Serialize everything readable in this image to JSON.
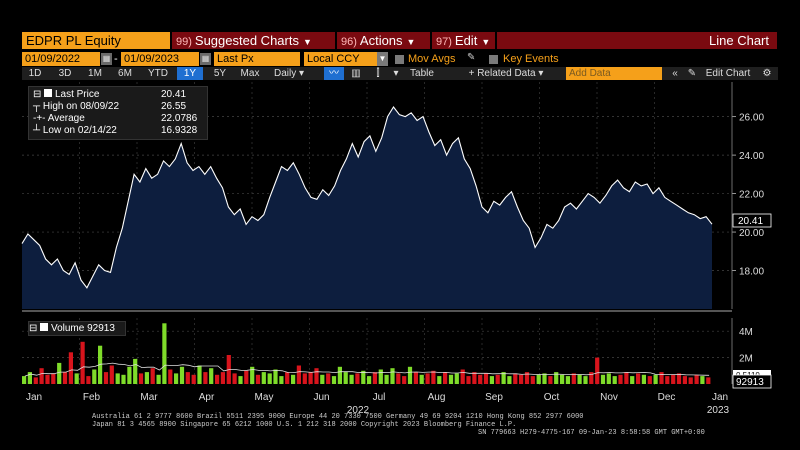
{
  "toolbar": {
    "ticker": "EDPR PL Equity",
    "suggested": {
      "num": "99)",
      "label": "Suggested Charts"
    },
    "actions": {
      "num": "96)",
      "label": "Actions"
    },
    "edit": {
      "num": "97)",
      "label": "Edit"
    },
    "chart_type": "Line Chart"
  },
  "controls": {
    "start_date": "01/09/2022",
    "end_date": "01/09/2023",
    "field": "Last Px",
    "currency": "Local CCY",
    "mov_avgs": "Mov Avgs",
    "key_events": "Key Events",
    "periods": [
      "1D",
      "3D",
      "1M",
      "6M",
      "YTD",
      "1Y",
      "5Y",
      "Max"
    ],
    "selected_period": "1Y",
    "frequency": "Daily",
    "table": "Table",
    "related_data": "+ Related Data",
    "add_data_placeholder": "Add Data",
    "edit_chart": "Edit Chart"
  },
  "legend": {
    "last_price_label": "Last Price",
    "last_price": "20.41",
    "high_label": "High on 08/09/22",
    "high": "26.55",
    "average_label": "Average",
    "average": "22.0786",
    "low_label": "Low on 02/14/22",
    "low": "16.9328",
    "volume_label": "Volume",
    "volume": "92913"
  },
  "chart_data": {
    "type": "area",
    "title": "EDPR PL Equity - Last Price",
    "ylim": [
      16,
      27.8
    ],
    "yticks": [
      "18.00",
      "20.00",
      "22.00",
      "24.00",
      "26.00"
    ],
    "last_value_label": "20.41",
    "x_month_labels": [
      "Jan",
      "Feb",
      "Mar",
      "Apr",
      "May",
      "Jun",
      "Jul",
      "Aug",
      "Sep",
      "Oct",
      "Nov",
      "Dec",
      "Jan"
    ],
    "year_labels": [
      "2022",
      "2023"
    ],
    "price": [
      19.4,
      19.9,
      19.6,
      19.3,
      18.6,
      18.3,
      18.6,
      18.0,
      17.8,
      18.4,
      17.5,
      17.1,
      17.7,
      18.3,
      18.0,
      17.9,
      19.2,
      20.2,
      21.6,
      23.0,
      22.6,
      23.3,
      22.8,
      23.0,
      23.7,
      23.4,
      23.8,
      24.6,
      23.6,
      23.2,
      23.4,
      23.0,
      23.4,
      22.8,
      22.3,
      21.3,
      20.9,
      21.2,
      20.4,
      20.8,
      20.6,
      20.9,
      21.8,
      22.6,
      23.4,
      23.2,
      23.6,
      23.0,
      22.3,
      21.8,
      21.7,
      22.2,
      21.9,
      22.4,
      23.2,
      23.8,
      24.6,
      23.9,
      24.7,
      25.0,
      24.2,
      24.9,
      26.0,
      26.5,
      26.1,
      26.0,
      26.2,
      25.8,
      26.0,
      25.2,
      24.5,
      24.8,
      24.0,
      24.6,
      24.9,
      23.8,
      23.3,
      22.4,
      21.3,
      21.0,
      21.6,
      21.4,
      21.8,
      22.1,
      21.3,
      20.6,
      20.2,
      19.2,
      19.7,
      20.4,
      20.2,
      20.6,
      21.3,
      21.5,
      21.2,
      21.6,
      22.0,
      21.8,
      21.5,
      21.9,
      22.4,
      22.7,
      22.3,
      22.1,
      22.6,
      22.4,
      22.5,
      22.0,
      22.3,
      21.8,
      21.6,
      21.4,
      21.2,
      21.0,
      20.9,
      20.7,
      20.8,
      20.41
    ],
    "volume": [
      0.6,
      0.9,
      0.5,
      1.2,
      0.7,
      0.8,
      1.6,
      0.9,
      2.4,
      0.8,
      3.2,
      0.6,
      1.1,
      2.9,
      0.9,
      1.4,
      0.8,
      0.7,
      1.3,
      1.9,
      0.8,
      0.9,
      1.2,
      0.7,
      4.6,
      1.1,
      0.8,
      1.3,
      0.9,
      0.7,
      1.4,
      0.9,
      1.2,
      0.7,
      0.9,
      2.2,
      0.8,
      0.6,
      1.0,
      1.3,
      0.7,
      0.9,
      0.8,
      1.1,
      0.6,
      0.9,
      0.7,
      1.4,
      0.8,
      0.9,
      1.2,
      0.7,
      0.8,
      0.6,
      1.3,
      0.9,
      0.7,
      0.8,
      1.0,
      0.6,
      0.9,
      1.1,
      0.7,
      1.2,
      0.8,
      0.6,
      1.3,
      0.9,
      0.7,
      0.8,
      1.0,
      0.6,
      0.9,
      0.7,
      0.8,
      1.1,
      0.6,
      0.9,
      0.7,
      0.8,
      0.6,
      0.7,
      0.9,
      0.6,
      0.8,
      0.7,
      0.9,
      0.6,
      0.7,
      0.8,
      0.6,
      0.9,
      0.7,
      0.6,
      0.8,
      0.7,
      0.6,
      0.9,
      2.0,
      0.7,
      0.8,
      0.6,
      0.7,
      0.9,
      0.6,
      0.8,
      0.7,
      0.6,
      0.7,
      0.9,
      0.6,
      0.7,
      0.8,
      0.6,
      0.5,
      0.7,
      0.6,
      0.5
    ],
    "volume_yticks": [
      "2M",
      "4M"
    ],
    "volume_ymax": 5,
    "volume_last_label": "92913",
    "volume_ma_label": "0.5110"
  },
  "footer": {
    "line1": "Australia 61 2 9777 8600 Brazil 5511 2395 9000 Europe 44 20 7330 7500 Germany 49 69 9204 1210 Hong Kong 852 2977 6000",
    "line2": "Japan 81 3 4565 8900          Singapore 65 6212 1000          U.S. 1 212 318 2000          Copyright 2023 Bloomberg Finance L.P.",
    "line3": "SN 779663 H279-4775-167 09-Jan-23  8:58:58 GMT  GMT+0:00"
  },
  "colors": {
    "price_fill": "#0d1e3e",
    "price_line": "#ffffff",
    "vol_up": "#7fdc2a",
    "vol_down": "#d8141c",
    "bar_accent": "#f5a01a",
    "menu_bg": "#7a0a10"
  }
}
